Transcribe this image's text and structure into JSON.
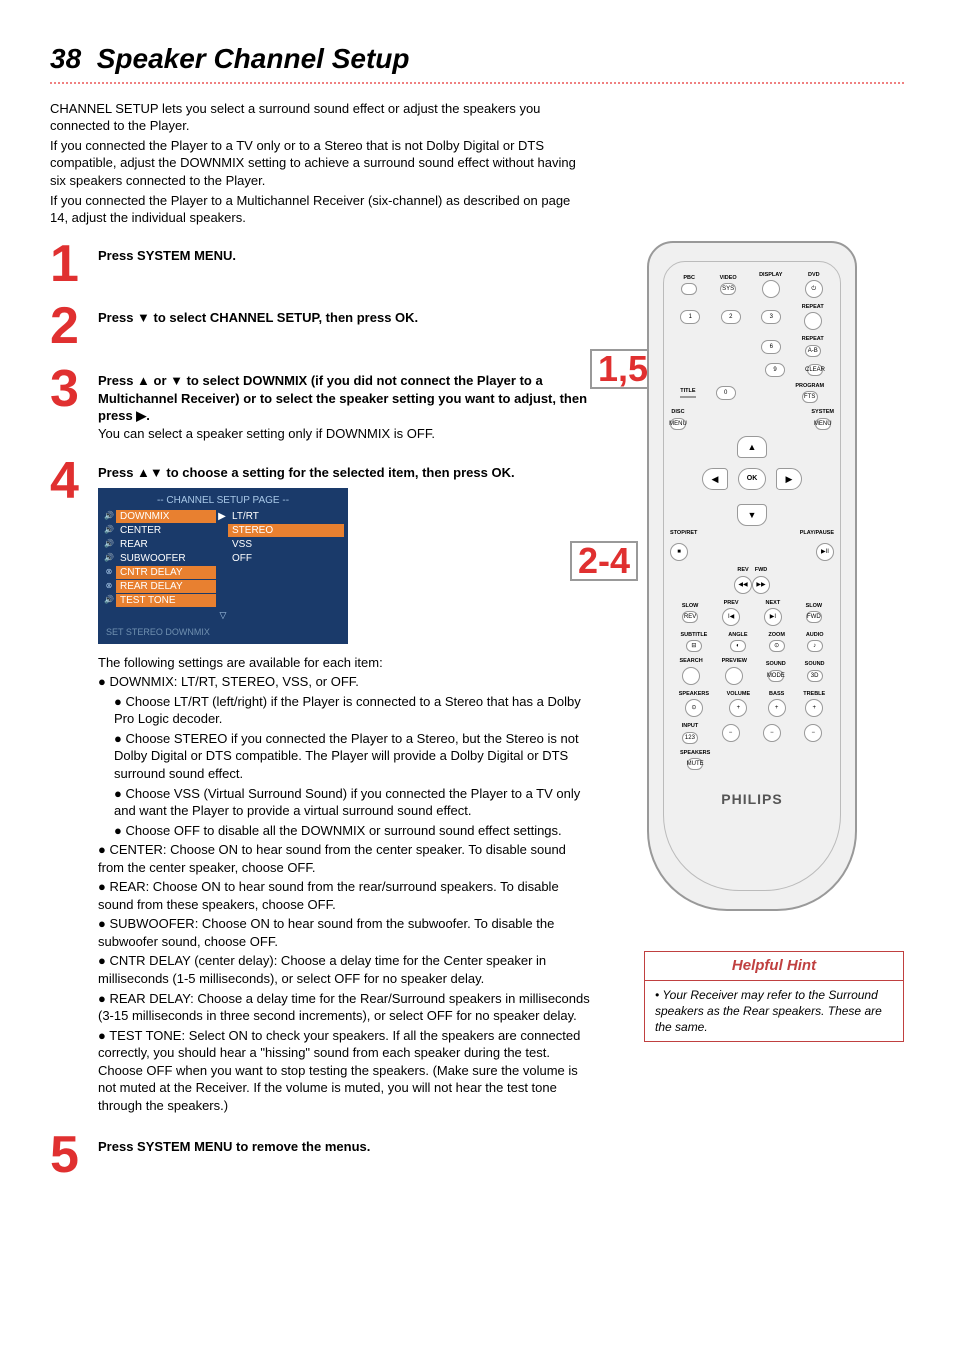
{
  "page_number": "38",
  "page_title": "Speaker Channel Setup",
  "intro": {
    "p1": "CHANNEL SETUP lets you select a surround sound effect or adjust the speakers you connected to the Player.",
    "p2": "If you connected the Player to a TV only or to a Stereo that is not Dolby Digital or DTS compatible, adjust the DOWNMIX setting to achieve a surround sound effect without having six speakers connected to the Player.",
    "p3": "If you connected the Player to a Multichannel Receiver (six-channel) as described on page 14, adjust the individual speakers."
  },
  "steps": [
    {
      "num": "1",
      "text": "Press SYSTEM MENU."
    },
    {
      "num": "2",
      "text": "Press ▼ to select CHANNEL SETUP, then press OK."
    },
    {
      "num": "3",
      "text": "Press ▲ or ▼ to select DOWNMIX (if you did not connect the Player to a Multichannel Receiver) or to select the speaker setting you want to adjust, then press ▶.",
      "extra": "You can select a speaker setting only if DOWNMIX is OFF."
    },
    {
      "num": "4",
      "text": "Press ▲▼ to choose a setting for the selected item, then press OK."
    },
    {
      "num": "5",
      "text": "Press SYSTEM MENU to remove the menus."
    }
  ],
  "menu": {
    "header": "--  CHANNEL SETUP PAGE  --",
    "rows": [
      {
        "icon": "🔊",
        "item": "DOWNMIX",
        "item_sel": true,
        "value": "LT/RT",
        "arrow": "▶"
      },
      {
        "icon": "🔊",
        "item": "CENTER",
        "value": "STEREO",
        "value_sel": true
      },
      {
        "icon": "🔊",
        "item": "REAR",
        "value": "VSS"
      },
      {
        "icon": "🔊",
        "item": "SUBWOOFER",
        "value": "OFF"
      },
      {
        "icon": "⊗",
        "item": "CNTR DELAY",
        "item_sel": true,
        "value": ""
      },
      {
        "icon": "⊗",
        "item": "REAR DELAY",
        "item_sel": true,
        "value": ""
      },
      {
        "icon": "🔊",
        "item": "TEST TONE",
        "item_sel": true,
        "value": ""
      }
    ],
    "nav": "▽",
    "footer": "SET STEREO DOWNMIX"
  },
  "settings_intro": "The following settings are available for each item:",
  "settings": {
    "downmix_head": "DOWNMIX: LT/RT, STEREO, VSS, or OFF.",
    "downmix_lt": "Choose LT/RT (left/right) if the Player is connected to a Stereo that has a Dolby Pro Logic decoder.",
    "downmix_stereo": "Choose STEREO if you connected the Player to a Stereo, but the Stereo is not Dolby Digital or DTS compatible. The Player will provide a Dolby Digital or DTS surround sound effect.",
    "downmix_vss": "Choose VSS (Virtual Surround Sound) if you connected the Player to a TV only and want the Player to provide a virtual surround sound effect.",
    "downmix_off": "Choose OFF to disable all the DOWNMIX or surround sound effect settings.",
    "center": "CENTER: Choose ON to hear sound from the center speaker. To disable sound from the center speaker, choose OFF.",
    "rear": "REAR: Choose ON to hear sound from the rear/surround speakers. To disable sound from these speakers, choose OFF.",
    "subwoofer": "SUBWOOFER: Choose ON to hear sound from the subwoofer. To disable the subwoofer sound, choose OFF.",
    "cntr_delay": "CNTR DELAY (center delay): Choose a delay time for the Center speaker in milliseconds (1-5 milliseconds), or select OFF for no speaker delay.",
    "rear_delay": "REAR DELAY: Choose a delay time for the Rear/Surround speakers in milliseconds (3-15 milliseconds in three second increments), or select OFF for no speaker delay.",
    "test_tone": "TEST TONE: Select ON to check your speakers. If all the speakers are connected correctly, you should hear a \"hissing\" sound from each speaker during the test. Choose OFF when you want to stop testing the speakers. (Make sure the volume is not muted at the Receiver. If the volume is muted, you will not hear the test tone through the speakers.)"
  },
  "remote": {
    "callout_15": "1,5",
    "callout_24": "2-4",
    "ok": "OK",
    "logo": "PHILIPS",
    "row1": [
      "PBC",
      "VIDEO",
      "DISPLAY",
      "DVD"
    ],
    "row2": [
      "1",
      "2",
      "3",
      "REPEAT"
    ],
    "row3": [
      "",
      "",
      "6",
      "A-B"
    ],
    "row4": [
      "",
      "",
      "9",
      "CLEAR"
    ],
    "row5": [
      "TITLE",
      "0",
      "",
      "PROGRAM"
    ],
    "row6": [
      "DISC",
      "",
      "",
      "SYSTEM"
    ],
    "stop": "STOP/RET",
    "play": "PLAY/PAUSE",
    "rev": "REV",
    "fwd": "FWD",
    "slow": "SLOW",
    "prev": "PREV",
    "next": "NEXT",
    "subtitle": "SUBTITLE",
    "angle": "ANGLE",
    "zoom": "ZOOM",
    "audio": "AUDIO",
    "search": "SEARCH",
    "preview": "PREVIEW",
    "sound": "SOUND",
    "speakers": "SPEAKERS",
    "volume": "VOLUME",
    "bass": "BASS",
    "treble": "TREBLE",
    "input": "INPUT",
    "mute": "MUTE"
  },
  "hint": {
    "title": "Helpful Hint",
    "body": "Your Receiver may refer to the Surround speakers as the Rear speakers. These are the same."
  },
  "colors": {
    "accent_red": "#e03030",
    "menu_bg": "#1a3a6a",
    "menu_highlight": "#e88030",
    "dotted": "#f08080"
  }
}
